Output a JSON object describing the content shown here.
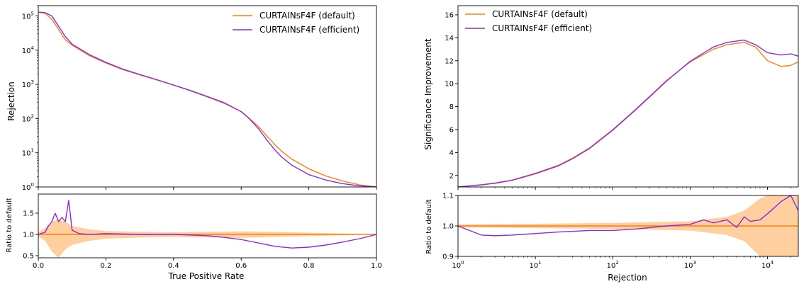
{
  "colors": {
    "default": "#ff7f0e",
    "efficient": "#8a2be2",
    "default_band": "#ffbf80",
    "efficient_band": "#c8a0f0"
  },
  "chart_data": [
    {
      "type": "line",
      "panel": "left-main",
      "xlabel": "",
      "ylabel": "Rejection",
      "xlim": [
        0.0,
        1.0
      ],
      "ylim": [
        1,
        200000
      ],
      "yscale": "log",
      "ytick_labels": [
        "10^0",
        "10^1",
        "10^2",
        "10^3",
        "10^4",
        "10^5"
      ],
      "grid": false,
      "legend_position": "top-right",
      "series": [
        {
          "name": "CURTAINsF4F (default)",
          "x": [
            0.0,
            0.02,
            0.04,
            0.06,
            0.08,
            0.1,
            0.15,
            0.2,
            0.25,
            0.3,
            0.35,
            0.4,
            0.45,
            0.5,
            0.55,
            0.6,
            0.62,
            0.65,
            0.68,
            0.7,
            0.72,
            0.75,
            0.8,
            0.85,
            0.9,
            0.95,
            1.0
          ],
          "y": [
            130000,
            120000,
            80000,
            40000,
            20000,
            14000,
            7000,
            4200,
            2700,
            1900,
            1350,
            950,
            650,
            430,
            280,
            160,
            110,
            60,
            28,
            17,
            11,
            6.5,
            3.4,
            2.1,
            1.5,
            1.15,
            1.0
          ]
        },
        {
          "name": "CURTAINsF4F (efficient)",
          "x": [
            0.0,
            0.02,
            0.04,
            0.06,
            0.08,
            0.1,
            0.15,
            0.2,
            0.25,
            0.3,
            0.35,
            0.4,
            0.45,
            0.5,
            0.55,
            0.6,
            0.62,
            0.65,
            0.68,
            0.7,
            0.72,
            0.75,
            0.8,
            0.85,
            0.9,
            0.95,
            1.0
          ],
          "y": [
            130000,
            125000,
            100000,
            50000,
            25000,
            15000,
            7500,
            4400,
            2800,
            1950,
            1380,
            960,
            660,
            440,
            290,
            160,
            108,
            52,
            21,
            12,
            7.5,
            4.3,
            2.3,
            1.6,
            1.25,
            1.08,
            1.0
          ]
        }
      ]
    },
    {
      "type": "line",
      "panel": "left-ratio",
      "xlabel": "True Positive Rate",
      "ylabel": "Ratio to default",
      "xlim": [
        0.0,
        1.0
      ],
      "ylim": [
        0.45,
        1.95
      ],
      "yticks": [
        0.5,
        1.0,
        1.5
      ],
      "xticks": [
        0.0,
        0.2,
        0.4,
        0.6,
        0.8,
        1.0
      ],
      "series": [
        {
          "name": "CURTAINsF4F (default)",
          "x": [
            0.0,
            1.0
          ],
          "y": [
            1.0,
            1.0
          ],
          "band_lower": {
            "x": [
              0.0,
              0.02,
              0.04,
              0.06,
              0.08,
              0.1,
              0.15,
              0.2,
              0.3,
              0.4,
              0.5,
              0.6,
              0.7,
              0.8,
              0.9,
              1.0
            ],
            "y": [
              0.95,
              0.85,
              0.6,
              0.45,
              0.65,
              0.75,
              0.85,
              0.9,
              0.93,
              0.94,
              0.93,
              0.92,
              0.94,
              0.96,
              0.98,
              1.0
            ]
          },
          "band_upper": {
            "x": [
              0.0,
              0.02,
              0.04,
              0.06,
              0.08,
              0.1,
              0.15,
              0.2,
              0.3,
              0.4,
              0.5,
              0.6,
              0.7,
              0.8,
              0.9,
              1.0
            ],
            "y": [
              1.05,
              1.15,
              1.3,
              1.35,
              1.3,
              1.2,
              1.12,
              1.08,
              1.06,
              1.05,
              1.06,
              1.07,
              1.06,
              1.04,
              1.02,
              1.0
            ]
          }
        },
        {
          "name": "CURTAINsF4F (efficient)",
          "x": [
            0.0,
            0.02,
            0.03,
            0.04,
            0.05,
            0.06,
            0.07,
            0.08,
            0.09,
            0.1,
            0.12,
            0.15,
            0.2,
            0.3,
            0.4,
            0.5,
            0.55,
            0.6,
            0.65,
            0.7,
            0.75,
            0.8,
            0.85,
            0.9,
            0.95,
            1.0
          ],
          "y": [
            1.0,
            1.05,
            1.2,
            1.3,
            1.5,
            1.3,
            1.4,
            1.3,
            1.8,
            1.1,
            1.02,
            1.0,
            1.02,
            1.0,
            1.0,
            0.97,
            0.93,
            0.88,
            0.8,
            0.72,
            0.68,
            0.7,
            0.75,
            0.82,
            0.9,
            1.0
          ]
        }
      ]
    },
    {
      "type": "line",
      "panel": "right-main",
      "xlabel": "",
      "ylabel": "Significance Improvement",
      "xlim": [
        1,
        25000
      ],
      "xscale": "log",
      "ylim": [
        1.0,
        16.8
      ],
      "yticks": [
        2,
        4,
        6,
        8,
        10,
        12,
        14,
        16
      ],
      "grid": false,
      "legend_position": "top-left",
      "series": [
        {
          "name": "CURTAINsF4F (default)",
          "x": [
            1,
            2,
            3,
            5,
            10,
            20,
            30,
            50,
            100,
            200,
            300,
            500,
            1000,
            2000,
            3000,
            5000,
            7000,
            10000,
            15000,
            20000,
            25000
          ],
          "y": [
            1.0,
            1.2,
            1.35,
            1.6,
            2.2,
            2.9,
            3.5,
            4.4,
            6.0,
            7.8,
            8.9,
            10.3,
            11.9,
            13.0,
            13.4,
            13.6,
            13.2,
            12.0,
            11.5,
            11.6,
            11.9
          ]
        },
        {
          "name": "CURTAINsF4F (efficient)",
          "x": [
            1,
            2,
            3,
            5,
            10,
            20,
            30,
            50,
            100,
            200,
            300,
            500,
            1000,
            2000,
            3000,
            5000,
            7000,
            10000,
            15000,
            20000,
            25000
          ],
          "y": [
            1.0,
            1.18,
            1.32,
            1.58,
            2.15,
            2.85,
            3.45,
            4.35,
            5.95,
            7.75,
            8.85,
            10.25,
            11.95,
            13.2,
            13.6,
            13.8,
            13.4,
            12.7,
            12.5,
            12.6,
            12.4
          ]
        }
      ]
    },
    {
      "type": "line",
      "panel": "right-ratio",
      "xlabel": "Rejection",
      "ylabel": "Ratio to default",
      "xlim": [
        1,
        25000
      ],
      "xscale": "log",
      "ylim": [
        0.9,
        1.1
      ],
      "yticks": [
        0.9,
        1.0,
        1.1
      ],
      "xtick_labels": [
        "10^0",
        "10^1",
        "10^2",
        "10^3",
        "10^4"
      ],
      "series": [
        {
          "name": "CURTAINsF4F (default)",
          "x": [
            1,
            25000
          ],
          "y": [
            1.0,
            1.0
          ],
          "band_lower": {
            "x": [
              1,
              10,
              100,
              1000,
              3000,
              5000,
              8000,
              10000,
              15000,
              25000
            ],
            "y": [
              0.995,
              0.993,
              0.99,
              0.985,
              0.97,
              0.95,
              0.9,
              0.9,
              0.9,
              0.9
            ]
          },
          "band_upper": {
            "x": [
              1,
              10,
              100,
              1000,
              3000,
              5000,
              8000,
              10000,
              15000,
              25000
            ],
            "y": [
              1.005,
              1.007,
              1.01,
              1.015,
              1.03,
              1.05,
              1.09,
              1.1,
              1.1,
              1.1
            ]
          }
        },
        {
          "name": "CURTAINsF4F (efficient)",
          "x": [
            1,
            2,
            3,
            5,
            10,
            20,
            50,
            100,
            200,
            500,
            1000,
            1500,
            2000,
            3000,
            4000,
            5000,
            6000,
            8000,
            10000,
            15000,
            20000,
            25000
          ],
          "y": [
            1.0,
            0.97,
            0.968,
            0.97,
            0.975,
            0.98,
            0.985,
            0.985,
            0.99,
            1.0,
            1.005,
            1.02,
            1.01,
            1.02,
            0.995,
            1.03,
            1.015,
            1.02,
            1.04,
            1.08,
            1.1,
            1.05
          ]
        }
      ]
    }
  ]
}
